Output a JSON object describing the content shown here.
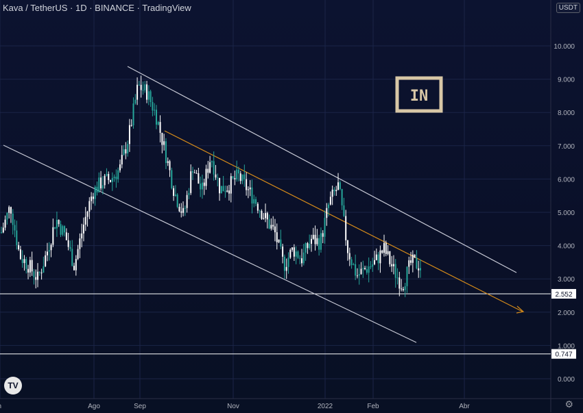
{
  "header": {
    "title": "Kava / TetherUS · 1D · BINANCE · TradingView",
    "currency": "USDT"
  },
  "watermark": {
    "logo_text": "[IN]"
  },
  "colors": {
    "candle": "#ffffff",
    "candle_alt": "#26a69a",
    "channel_line": "#c8cad6",
    "mid_line": "#d48a1a",
    "h_line": "#ffffff",
    "grid": "#1b2447",
    "axis_text": "#b2b5be"
  },
  "chart_data": {
    "type": "candlestick",
    "pair": "Kava / TetherUS",
    "interval": "1D",
    "exchange": "BINANCE",
    "ylim": [
      0,
      11
    ],
    "y_ticks": [
      "0.000",
      "1.000",
      "2.000",
      "3.000",
      "4.000",
      "5.000",
      "6.000",
      "7.000",
      "8.000",
      "9.000",
      "10.000"
    ],
    "x_ticks": [
      "Jun",
      "Ago",
      "Sep",
      "Nov",
      "2022",
      "Feb",
      "Abr"
    ],
    "price_path": [
      [
        "Jun",
        4.4
      ],
      [
        "Jun",
        5.2
      ],
      [
        "Jun",
        3.7
      ],
      [
        "Jun",
        3.4
      ],
      [
        "Jun",
        3.0
      ],
      [
        "Jun",
        3.8
      ],
      [
        "Jul",
        4.8
      ],
      [
        "Jul",
        4.3
      ],
      [
        "Jul",
        3.4
      ],
      [
        "Jul",
        4.6
      ],
      [
        "Jul",
        5.6
      ],
      [
        "Ago",
        5.9
      ],
      [
        "Ago",
        6.0
      ],
      [
        "Ago",
        6.3
      ],
      [
        "Ago",
        7.3
      ],
      [
        "Ago",
        8.8
      ],
      [
        "Sep",
        8.6
      ],
      [
        "Sep",
        7.9
      ],
      [
        "Sep",
        6.8
      ],
      [
        "Sep",
        5.6
      ],
      [
        "Sep",
        4.9
      ],
      [
        "Oct",
        6.4
      ],
      [
        "Oct",
        5.6
      ],
      [
        "Oct",
        6.7
      ],
      [
        "Oct",
        5.7
      ],
      [
        "Oct",
        5.8
      ],
      [
        "Nov",
        6.1
      ],
      [
        "Nov",
        5.7
      ],
      [
        "Nov",
        5.3
      ],
      [
        "Nov",
        4.8
      ],
      [
        "Nov",
        4.4
      ],
      [
        "Dic",
        3.4
      ],
      [
        "Dic",
        3.9
      ],
      [
        "Dic",
        3.6
      ],
      [
        "Dic",
        4.2
      ],
      [
        "Dic",
        4.1
      ],
      [
        "Ene",
        5.3
      ],
      [
        "Ene",
        5.8
      ],
      [
        "Ene",
        3.9
      ],
      [
        "Ene",
        3.1
      ],
      [
        "2022",
        3.3
      ],
      [
        "Feb",
        3.5
      ],
      [
        "Feb",
        3.9
      ],
      [
        "Feb",
        3.3
      ],
      [
        "Feb",
        2.8
      ],
      [
        "Feb",
        3.5
      ],
      [
        "Feb",
        3.4
      ]
    ],
    "levels": [
      "2.552",
      "0.747"
    ],
    "trend_lines": [
      {
        "name": "channel-upper"
      },
      {
        "name": "channel-lower"
      },
      {
        "name": "mid-line"
      }
    ],
    "grid": true
  }
}
